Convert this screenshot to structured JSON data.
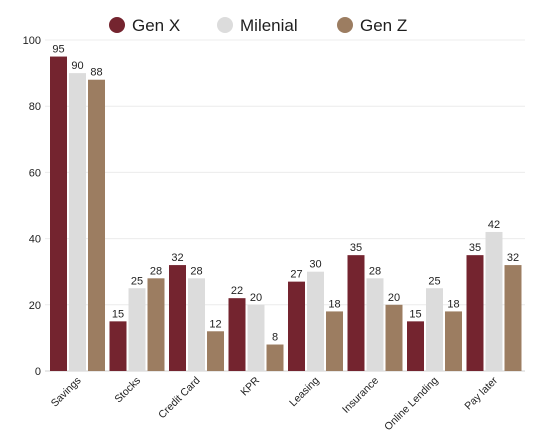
{
  "chart_data": {
    "type": "bar",
    "title": "",
    "xlabel": "",
    "ylabel": "",
    "ylim": [
      0,
      100
    ],
    "yticks": [
      0,
      20,
      40,
      60,
      80,
      100
    ],
    "grid": true,
    "legend_position": "top-center",
    "categories": [
      "Savings",
      "Stocks",
      "Credit Card",
      "KPR",
      "Leasing",
      "Insurance",
      "Online Lending",
      "Pay later"
    ],
    "series": [
      {
        "name": "Gen X",
        "color": "#74242f",
        "values": [
          95,
          15,
          32,
          22,
          27,
          35,
          15,
          35
        ]
      },
      {
        "name": "Milenial",
        "color": "#dcdcdc",
        "values": [
          90,
          25,
          28,
          20,
          30,
          28,
          25,
          42
        ]
      },
      {
        "name": "Gen Z",
        "color": "#9c7d61",
        "values": [
          88,
          28,
          12,
          8,
          18,
          20,
          18,
          32
        ]
      }
    ]
  }
}
